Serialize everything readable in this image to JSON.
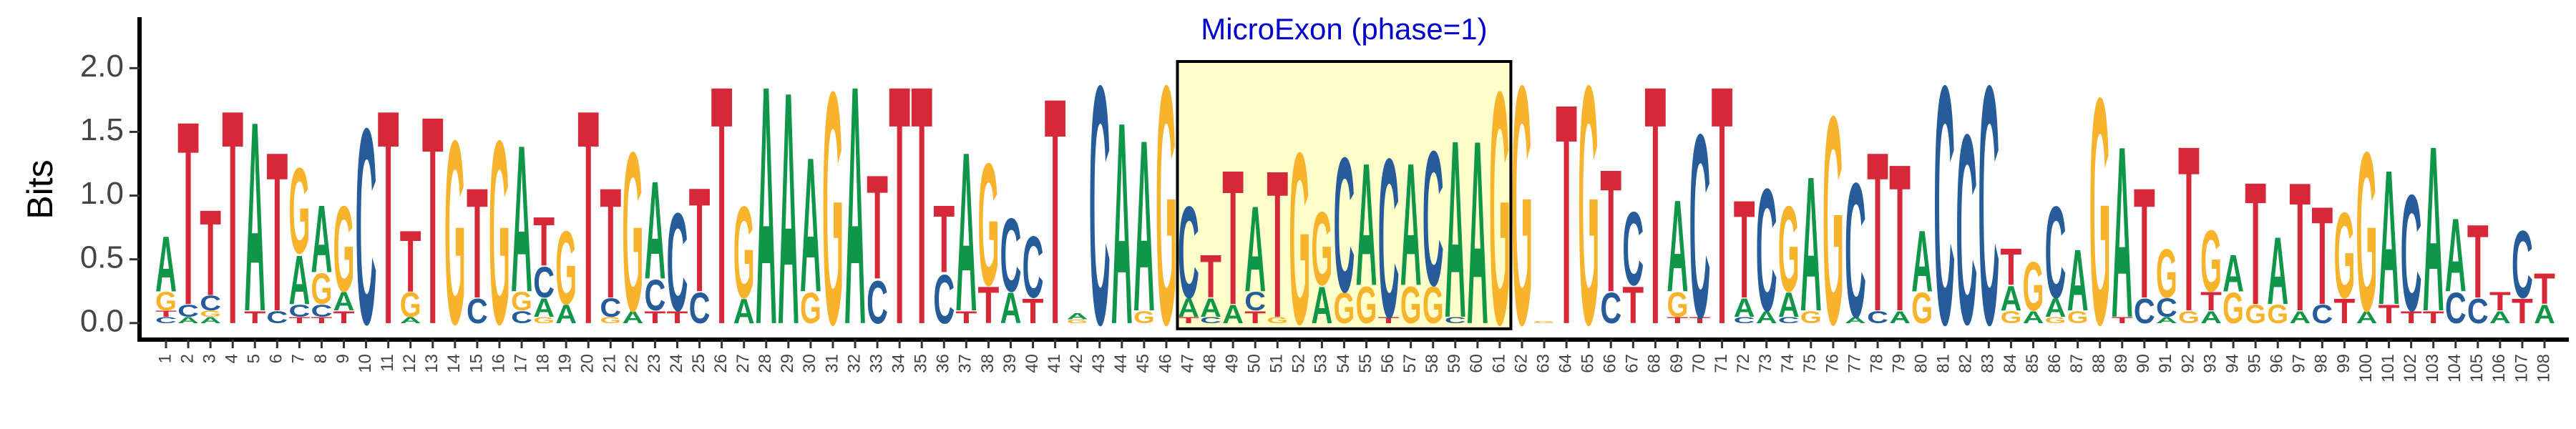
{
  "chart_data": {
    "type": "logo",
    "ylabel": "Bits",
    "ylim": [
      -0.13,
      2.4
    ],
    "yticks": [
      {
        "value": 0,
        "label": "0.0"
      },
      0.5,
      {
        "value": 1,
        "label": "1.0"
      },
      1.5,
      {
        "value": 2,
        "label": "2.0"
      }
    ],
    "annotation": {
      "text": "MicroExon (phase=1)",
      "start": 47,
      "end": 61,
      "color": "#0000cc",
      "fill": "#ffffcc"
    },
    "categories": [
      "1",
      "2",
      "3",
      "4",
      "5",
      "6",
      "7",
      "8",
      "9",
      "10",
      "11",
      "12",
      "13",
      "14",
      "15",
      "16",
      "17",
      "18",
      "19",
      "20",
      "21",
      "22",
      "23",
      "24",
      "25",
      "26",
      "27",
      "28",
      "29",
      "30",
      "31",
      "32",
      "33",
      "34",
      "35",
      "36",
      "37",
      "38",
      "39",
      "40",
      "41",
      "42",
      "43",
      "44",
      "45",
      "46",
      "47",
      "48",
      "49",
      "50",
      "51",
      "52",
      "53",
      "54",
      "55",
      "56",
      "57",
      "58",
      "59",
      "60",
      "61",
      "62",
      "63",
      "64",
      "65",
      "66",
      "67",
      "68",
      "69",
      "70",
      "71",
      "72",
      "73",
      "74",
      "75",
      "76",
      "77",
      "78",
      "79",
      "80",
      "81",
      "82",
      "83",
      "84",
      "85",
      "86",
      "87",
      "88",
      "89",
      "90",
      "91",
      "92",
      "93",
      "94",
      "95",
      "96",
      "97",
      "98",
      "99",
      "100",
      "101",
      "102",
      "103",
      "104",
      "105",
      "106",
      "107",
      "108"
    ],
    "series": [
      {
        "name": "A",
        "color": "#109648",
        "values": [
          0.45,
          0.05,
          0.05,
          0,
          1.55,
          0,
          0.4,
          0.55,
          0.15,
          0,
          0,
          0.05,
          0,
          0,
          0,
          0,
          1.2,
          0.15,
          0.15,
          0,
          0,
          0.1,
          0.8,
          0,
          0,
          0,
          0.2,
          1.95,
          1.9,
          1.1,
          0,
          1.95,
          0,
          0,
          0,
          0,
          1.3,
          0,
          0.25,
          0,
          0,
          0.05,
          0,
          1.65,
          1.4,
          0,
          0.15,
          0.15,
          0.15,
          0.7,
          0,
          0,
          0.3,
          0,
          1.0,
          0,
          1.0,
          0,
          1.45,
          1.5,
          0,
          0,
          0,
          0,
          0,
          0,
          0,
          0,
          0.75,
          0,
          0,
          0.15,
          0.1,
          0.2,
          1.1,
          0,
          0.05,
          0,
          0.1,
          0.5,
          0,
          0,
          0,
          0.2,
          0.1,
          0.15,
          0.5,
          0,
          1.4,
          0,
          0.05,
          0,
          0.1,
          0.3,
          0,
          0.55,
          0.1,
          0,
          0,
          0.1,
          1.1,
          0,
          1.35,
          0.6,
          0,
          0.1,
          0,
          0.15
        ]
      },
      {
        "name": "C",
        "color": "#255c99",
        "values": [
          0.05,
          0.1,
          0.12,
          0,
          0,
          0.1,
          0.1,
          0.1,
          0,
          1.6,
          0,
          0,
          0,
          0,
          0.2,
          0,
          0.1,
          0.25,
          0,
          0,
          0.15,
          0,
          0.25,
          0.8,
          0.25,
          0,
          0,
          0,
          0,
          0,
          0,
          0,
          0.35,
          0,
          0,
          0.4,
          0,
          0,
          0.6,
          0.5,
          0,
          0,
          1.95,
          0,
          0,
          0,
          0.75,
          0.05,
          0,
          0.15,
          0,
          0,
          0,
          1.1,
          0,
          1.3,
          0,
          1.1,
          0.05,
          0,
          0,
          0,
          0,
          0,
          0,
          0.25,
          0.6,
          0,
          0,
          1.5,
          0,
          0.05,
          1.0,
          0.05,
          0,
          0,
          1.1,
          0.1,
          0,
          0,
          1.95,
          1.55,
          1.95,
          0,
          0,
          0.75,
          0,
          0,
          0,
          0.2,
          0.15,
          0,
          0,
          0,
          0,
          0,
          0,
          0.15,
          0,
          0,
          0,
          0.95,
          0,
          0.25,
          0.2,
          0,
          0.55,
          0
        ]
      },
      {
        "name": "G",
        "color": "#f7b32b",
        "values": [
          0.15,
          0,
          0.05,
          0,
          0,
          0,
          0.7,
          0.25,
          0.7,
          0,
          0,
          0.2,
          0,
          1.5,
          0,
          1.5,
          0.15,
          0.05,
          0.6,
          0,
          0.05,
          1.3,
          0,
          0,
          0,
          0,
          0.75,
          0,
          0,
          0.25,
          1.9,
          0,
          0,
          0,
          0,
          0,
          0,
          1.0,
          0,
          0,
          0,
          0.03,
          0,
          0,
          0.1,
          1.95,
          0,
          0,
          0,
          0,
          0.05,
          1.4,
          0.6,
          0.25,
          0.3,
          0,
          0.3,
          0.3,
          0,
          0,
          1.9,
          1.95,
          0.02,
          0,
          1.95,
          0,
          0,
          0,
          0.2,
          0,
          0,
          0,
          0,
          0.7,
          0.1,
          1.7,
          0,
          0,
          0,
          0.25,
          0,
          0,
          0,
          0.1,
          0.4,
          0.05,
          0.1,
          1.85,
          0,
          0,
          0.4,
          0.1,
          0.5,
          0.25,
          0.15,
          0.15,
          0,
          0,
          0.7,
          1.3,
          0,
          0,
          0,
          0,
          0,
          0,
          0,
          0
        ]
      },
      {
        "name": "T",
        "color": "#d62839",
        "values": [
          0.05,
          1.5,
          0.7,
          1.75,
          0.1,
          1.3,
          0.05,
          0.05,
          0.1,
          0,
          1.75,
          0.5,
          1.7,
          0,
          0.9,
          0,
          0,
          0.4,
          0,
          1.75,
          0.9,
          0,
          0.1,
          0.1,
          0.85,
          1.95,
          0,
          0,
          0,
          0,
          0,
          0,
          0.85,
          1.95,
          1.95,
          0.55,
          0.1,
          0.3,
          0,
          0.2,
          1.85,
          0,
          0,
          0,
          0,
          0,
          0.05,
          0.35,
          1.1,
          0.1,
          1.2,
          0,
          0,
          0,
          0,
          0.05,
          0,
          0,
          0,
          0,
          0,
          0,
          0,
          1.8,
          0,
          1.0,
          0.3,
          1.95,
          0.05,
          0.05,
          1.95,
          0.8,
          0,
          0,
          0,
          0,
          0,
          1.3,
          1.2,
          0,
          0,
          0,
          0,
          0.3,
          0,
          0,
          0,
          0,
          0.05,
          0.9,
          0,
          1.35,
          0.15,
          0,
          1.0,
          0,
          1.05,
          0.8,
          0.2,
          0,
          0.15,
          0.1,
          0.1,
          0,
          0.6,
          0.15,
          0.2,
          0.25
        ]
      }
    ]
  }
}
